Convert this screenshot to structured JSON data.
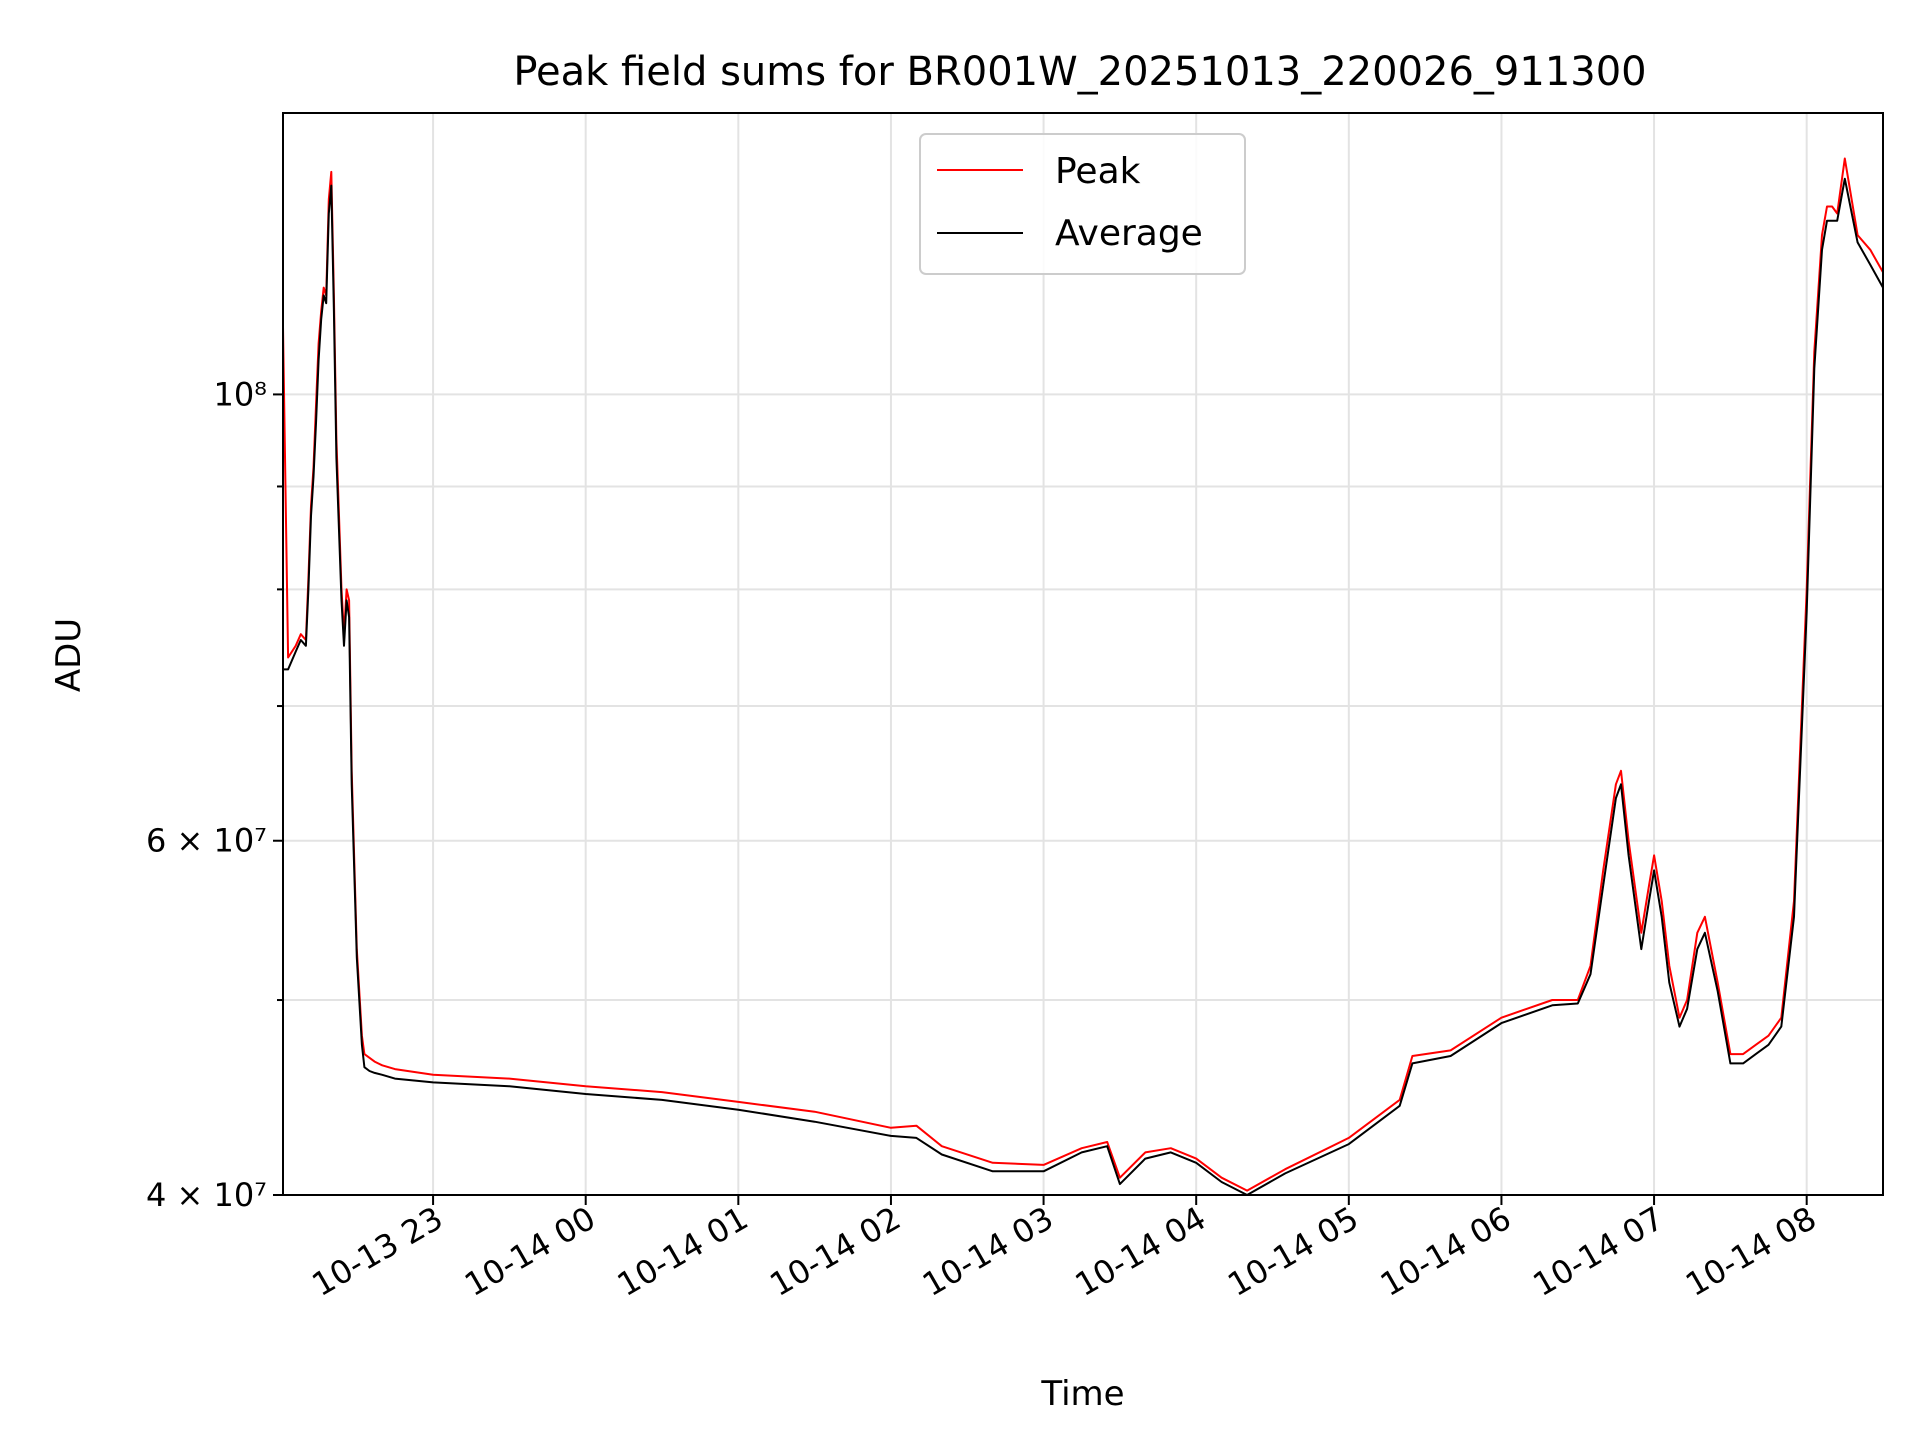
{
  "chart_data": {
    "type": "line",
    "title": "Peak field sums for BR001W_20251013_220026_911300",
    "xlabel": "Time",
    "ylabel": "ADU",
    "yscale": "log",
    "ylim": [
      40000000,
      138000000
    ],
    "xlim": [
      "2025-10-13 22:01",
      "2025-10-14 08:30"
    ],
    "grid": true,
    "legend_position": "upper center",
    "x_ticks": [
      {
        "time": "2025-10-13 23:00",
        "label": "10-13 23"
      },
      {
        "time": "2025-10-14 00:00",
        "label": "10-14 00"
      },
      {
        "time": "2025-10-14 01:00",
        "label": "10-14 01"
      },
      {
        "time": "2025-10-14 02:00",
        "label": "10-14 02"
      },
      {
        "time": "2025-10-14 03:00",
        "label": "10-14 03"
      },
      {
        "time": "2025-10-14 04:00",
        "label": "10-14 04"
      },
      {
        "time": "2025-10-14 05:00",
        "label": "10-14 05"
      },
      {
        "time": "2025-10-14 06:00",
        "label": "10-14 06"
      },
      {
        "time": "2025-10-14 07:00",
        "label": "10-14 07"
      },
      {
        "time": "2025-10-14 08:00",
        "label": "10-14 08"
      }
    ],
    "y_ticks_major": [
      {
        "value": 40000000,
        "label": "4 × 10⁷"
      },
      {
        "value": 60000000,
        "label": "6 × 10⁷"
      },
      {
        "value": 100000000,
        "label": "10⁸"
      }
    ],
    "y_ticks_minor": [
      50000000,
      70000000,
      80000000,
      90000000
    ],
    "x": [
      "2025-10-13 22:01",
      "2025-10-13 22:03",
      "2025-10-13 22:06",
      "2025-10-13 22:08",
      "2025-10-13 22:10",
      "2025-10-13 22:11",
      "2025-10-13 22:12",
      "2025-10-13 22:13",
      "2025-10-13 22:14",
      "2025-10-13 22:15",
      "2025-10-13 22:16",
      "2025-10-13 22:17",
      "2025-10-13 22:18",
      "2025-10-13 22:19",
      "2025-10-13 22:20",
      "2025-10-13 22:21",
      "2025-10-13 22:22",
      "2025-10-13 22:24",
      "2025-10-13 22:25",
      "2025-10-13 22:26",
      "2025-10-13 22:27",
      "2025-10-13 22:28",
      "2025-10-13 22:30",
      "2025-10-13 22:32",
      "2025-10-13 22:33",
      "2025-10-13 22:35",
      "2025-10-13 22:37",
      "2025-10-13 22:40",
      "2025-10-13 22:45",
      "2025-10-13 23:00",
      "2025-10-13 23:30",
      "2025-10-14 00:00",
      "2025-10-14 00:30",
      "2025-10-14 01:00",
      "2025-10-14 01:30",
      "2025-10-14 02:00",
      "2025-10-14 02:10",
      "2025-10-14 02:20",
      "2025-10-14 02:40",
      "2025-10-14 03:00",
      "2025-10-14 03:15",
      "2025-10-14 03:25",
      "2025-10-14 03:30",
      "2025-10-14 03:40",
      "2025-10-14 03:50",
      "2025-10-14 04:00",
      "2025-10-14 04:10",
      "2025-10-14 04:20",
      "2025-10-14 04:35",
      "2025-10-14 05:00",
      "2025-10-14 05:20",
      "2025-10-14 05:25",
      "2025-10-14 05:40",
      "2025-10-14 06:00",
      "2025-10-14 06:20",
      "2025-10-14 06:30",
      "2025-10-14 06:35",
      "2025-10-14 06:40",
      "2025-10-14 06:45",
      "2025-10-14 06:47",
      "2025-10-14 06:50",
      "2025-10-14 06:55",
      "2025-10-14 06:58",
      "2025-10-14 07:00",
      "2025-10-14 07:03",
      "2025-10-14 07:06",
      "2025-10-14 07:10",
      "2025-10-14 07:13",
      "2025-10-14 07:17",
      "2025-10-14 07:20",
      "2025-10-14 07:25",
      "2025-10-14 07:30",
      "2025-10-14 07:35",
      "2025-10-14 07:40",
      "2025-10-14 07:45",
      "2025-10-14 07:50",
      "2025-10-14 07:55",
      "2025-10-14 08:00",
      "2025-10-14 08:03",
      "2025-10-14 08:06",
      "2025-10-14 08:08",
      "2025-10-14 08:10",
      "2025-10-14 08:12",
      "2025-10-14 08:15",
      "2025-10-14 08:20",
      "2025-10-14 08:25",
      "2025-10-14 08:30"
    ],
    "series": [
      {
        "name": "Peak",
        "color": "#ff0000",
        "values": [
          108000000,
          74000000,
          75000000,
          76000000,
          75500000,
          81000000,
          88000000,
          92000000,
          99000000,
          106000000,
          110000000,
          113000000,
          112000000,
          125000000,
          129000000,
          112000000,
          95000000,
          80000000,
          76000000,
          80000000,
          79000000,
          65000000,
          53000000,
          48000000,
          47000000,
          46800000,
          46600000,
          46400000,
          46200000,
          45900000,
          45700000,
          45300000,
          45000000,
          44500000,
          44000000,
          43200000,
          43300000,
          42300000,
          41500000,
          41400000,
          42200000,
          42500000,
          40800000,
          42000000,
          42200000,
          41700000,
          40800000,
          40200000,
          41200000,
          42700000,
          44600000,
          46900000,
          47200000,
          49000000,
          50000000,
          50000000,
          52000000,
          58000000,
          64000000,
          65000000,
          60000000,
          54000000,
          57000000,
          59000000,
          56000000,
          52000000,
          49000000,
          50000000,
          54000000,
          55000000,
          51000000,
          47000000,
          47000000,
          47500000,
          48000000,
          49000000,
          56000000,
          80000000,
          105000000,
          120000000,
          124000000,
          124000000,
          123000000,
          131000000,
          120000000,
          118000000,
          115000000
        ]
      },
      {
        "name": "Average",
        "color": "#000000",
        "values": [
          73000000,
          73000000,
          74500000,
          75500000,
          75000000,
          80000000,
          87000000,
          91000000,
          97000000,
          104000000,
          109000000,
          112000000,
          111000000,
          123000000,
          127000000,
          110000000,
          93000000,
          79000000,
          75000000,
          79000000,
          77500000,
          64000000,
          52500000,
          47500000,
          46300000,
          46100000,
          46000000,
          45900000,
          45700000,
          45500000,
          45300000,
          44900000,
          44600000,
          44100000,
          43500000,
          42800000,
          42700000,
          41900000,
          41100000,
          41100000,
          42000000,
          42300000,
          40500000,
          41700000,
          42000000,
          41500000,
          40600000,
          40000000,
          41000000,
          42400000,
          44300000,
          46500000,
          46900000,
          48700000,
          49700000,
          49800000,
          51500000,
          57000000,
          63000000,
          64000000,
          59000000,
          53000000,
          56000000,
          58000000,
          55000000,
          51000000,
          48500000,
          49500000,
          53000000,
          54000000,
          50500000,
          46500000,
          46500000,
          47000000,
          47500000,
          48500000,
          55000000,
          78000000,
          103000000,
          118000000,
          122000000,
          122000000,
          122000000,
          128000000,
          119000000,
          116000000,
          113000000
        ]
      }
    ]
  }
}
